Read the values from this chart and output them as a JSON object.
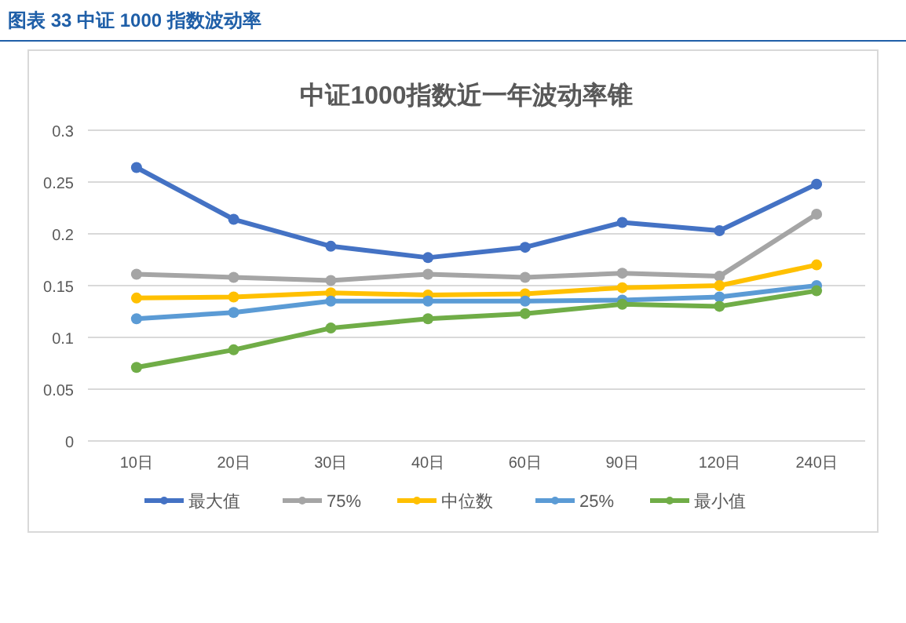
{
  "chart_data": {
    "type": "line",
    "title": "中证1000指数近一年波动率锥",
    "annotations": [
      "图表 33  中证 1000 指数波动率"
    ],
    "categories": [
      "10日",
      "20日",
      "30日",
      "40日",
      "60日",
      "90日",
      "120日",
      "240日"
    ],
    "series": [
      {
        "name": "最大值",
        "color": "#4472c4",
        "values": [
          0.264,
          0.214,
          0.188,
          0.177,
          0.187,
          0.211,
          0.203,
          0.248
        ]
      },
      {
        "name": "75%",
        "color": "#a5a5a5",
        "values": [
          0.161,
          0.158,
          0.155,
          0.161,
          0.158,
          0.162,
          0.159,
          0.219
        ]
      },
      {
        "name": "中位数",
        "color": "#ffc000",
        "values": [
          0.138,
          0.139,
          0.143,
          0.141,
          0.142,
          0.148,
          0.15,
          0.17
        ]
      },
      {
        "name": "25%",
        "color": "#5b9bd5",
        "values": [
          0.118,
          0.124,
          0.135,
          0.135,
          0.135,
          0.136,
          0.139,
          0.15
        ]
      },
      {
        "name": "最小值",
        "color": "#70ad47",
        "values": [
          0.071,
          0.088,
          0.109,
          0.118,
          0.123,
          0.132,
          0.13,
          0.145
        ]
      }
    ],
    "ylim": [
      0,
      0.3
    ],
    "yticks": [
      0,
      0.05,
      0.1,
      0.15,
      0.2,
      0.25,
      0.3
    ],
    "grid": "y",
    "legend": "bottom",
    "marker": "circle",
    "line_style": "solid"
  }
}
